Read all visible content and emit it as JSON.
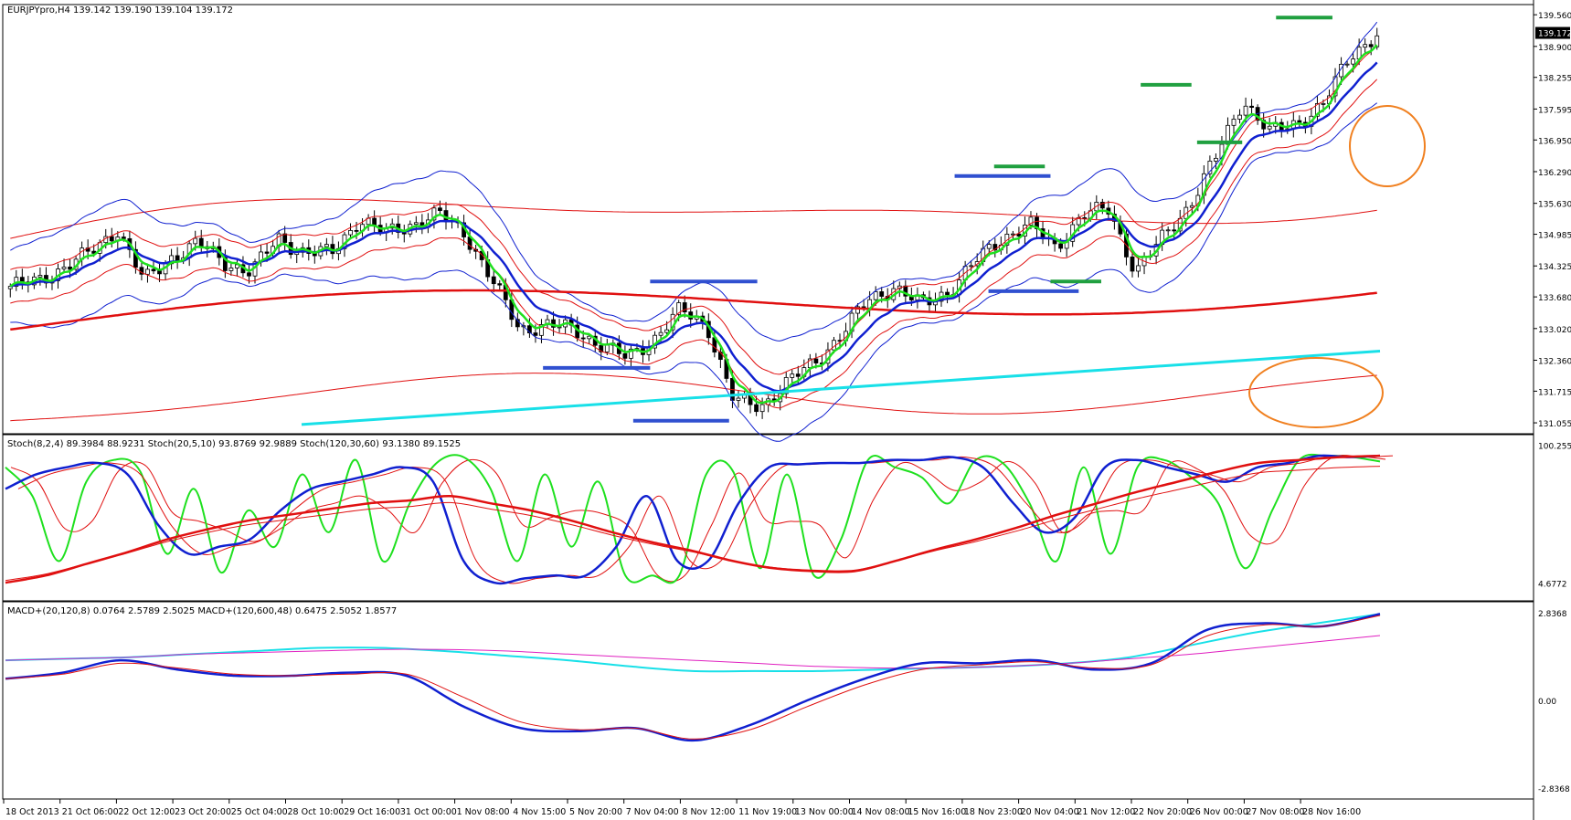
{
  "header": {
    "main": "EURJPYpro,H4  139.142 139.190 139.104 139.172",
    "stoch": "Stoch(8,2,4) 89.3984 88.9231  Stoch(20,5,10) 93.8769 92.9889  Stoch(120,30,60) 93.1380 89.1525",
    "macd": "MACD+(20,120,8) 0.0764 2.5789 2.5025  MACD+(120,600,48) 0.6475 2.5052 1.8577"
  },
  "price_badge": "139.172",
  "colors": {
    "green": "#1ee01e",
    "blue": "#1020d0",
    "red": "#e01010",
    "cyan": "#18e0e8",
    "magenta": "#e020c0",
    "orange": "#f08020",
    "level_blue": "#3050d0",
    "level_green": "#20a040"
  },
  "chart_data": [
    {
      "type": "candlestick",
      "panel": "price",
      "symbol": "EURJPYpro",
      "timeframe": "H4",
      "ohlc_last": {
        "open": 139.142,
        "high": 139.19,
        "low": 139.104,
        "close": 139.172
      },
      "x_labels": [
        "18 Oct 2013",
        "21 Oct 06:00",
        "22 Oct 12:00",
        "23 Oct 20:00",
        "25 Oct 04:00",
        "28 Oct 10:00",
        "29 Oct 16:00",
        "31 Oct 00:00",
        "1 Nov 08:00",
        "4 Nov 15:00",
        "5 Nov 20:00",
        "7 Nov 04:00",
        "8 Nov 12:00",
        "11 Nov 19:00",
        "13 Nov 00:00",
        "14 Nov 08:00",
        "15 Nov 16:00",
        "18 Nov 23:00",
        "20 Nov 04:00",
        "21 Nov 12:00",
        "22 Nov 20:00",
        "26 Nov 00:00",
        "27 Nov 08:00",
        "28 Nov 16:00"
      ],
      "y_ticks": [
        "139.560",
        "138.900",
        "138.255",
        "137.595",
        "136.950",
        "136.290",
        "135.630",
        "134.985",
        "134.325",
        "133.680",
        "133.020",
        "132.360",
        "131.715",
        "131.055"
      ],
      "ylim": [
        130.98,
        139.62
      ],
      "close_path": [
        133.9,
        134.0,
        134.3,
        134.6,
        135.1,
        134.0,
        134.5,
        134.8,
        134.4,
        134.2,
        134.9,
        134.6,
        134.6,
        135.3,
        135.0,
        135.2,
        135.4,
        135.0,
        134.0,
        133.0,
        133.1,
        133.0,
        132.7,
        132.4,
        132.8,
        133.4,
        133.1,
        131.5,
        131.4,
        131.9,
        132.3,
        132.9,
        133.6,
        133.9,
        133.5,
        133.8,
        134.4,
        134.9,
        135.2,
        134.7,
        135.4,
        135.5,
        134.2,
        134.9,
        135.6,
        136.6,
        137.8,
        137.1,
        137.3,
        137.7,
        138.7,
        139.17
      ],
      "support_resistance_levels": [
        {
          "color": "level_blue",
          "from": 9.5,
          "to": 11.4,
          "value": 132.2
        },
        {
          "color": "level_blue",
          "from": 11.4,
          "to": 13.3,
          "value": 134.0
        },
        {
          "color": "level_blue",
          "from": 11.1,
          "to": 12.8,
          "value": 131.1
        },
        {
          "color": "level_blue",
          "from": 16.8,
          "to": 18.5,
          "value": 136.2
        },
        {
          "color": "level_green",
          "from": 17.5,
          "to": 18.4,
          "value": 136.4
        },
        {
          "color": "level_blue",
          "from": 17.4,
          "to": 19.0,
          "value": 133.8
        },
        {
          "color": "level_green",
          "from": 18.5,
          "to": 19.4,
          "value": 134.0
        },
        {
          "color": "level_green",
          "from": 20.1,
          "to": 21.0,
          "value": 138.1
        },
        {
          "color": "level_green",
          "from": 21.1,
          "to": 21.9,
          "value": 136.9
        },
        {
          "color": "level_green",
          "from": 22.5,
          "to": 23.5,
          "value": 139.5
        }
      ],
      "annotations": [
        "orange-circle-upper",
        "orange-ellipse-lower"
      ]
    },
    {
      "type": "line",
      "panel": "stochastic",
      "y_ticks": [
        "100.2558",
        "4.6772"
      ],
      "ylim": [
        0,
        100
      ],
      "series": [
        {
          "color": "green",
          "values": [
            85,
            65,
            20,
            75,
            90,
            82,
            25,
            70,
            12,
            55,
            30,
            80,
            40,
            90,
            20,
            60,
            88,
            92,
            70,
            20,
            80,
            30,
            75,
            10,
            10,
            10,
            80,
            82,
            15,
            80,
            10,
            35,
            90,
            85,
            78,
            60,
            90,
            88,
            60,
            20,
            85,
            25,
            85,
            90,
            78,
            60,
            15,
            55,
            90,
            93,
            92,
            89
          ]
        },
        {
          "color": "blue",
          "values": [
            70,
            80,
            85,
            88,
            80,
            45,
            25,
            30,
            35,
            55,
            70,
            75,
            80,
            85,
            75,
            20,
            5,
            8,
            10,
            10,
            30,
            65,
            20,
            20,
            60,
            85,
            87,
            88,
            88,
            90,
            90,
            92,
            85,
            60,
            40,
            50,
            85,
            90,
            85,
            80,
            75,
            85,
            88,
            93,
            92,
            93
          ]
        },
        {
          "color": "red",
          "values": [
            5,
            10,
            18,
            26,
            35,
            42,
            48,
            52,
            56,
            60,
            62,
            65,
            60,
            55,
            48,
            40,
            33,
            27,
            20,
            15,
            13,
            13,
            20,
            28,
            35,
            43,
            52,
            60,
            68,
            75,
            82,
            88,
            90,
            92,
            93
          ]
        }
      ]
    },
    {
      "type": "line",
      "panel": "macd",
      "y_ticks": [
        "2.8368",
        "0.00",
        "-2.8368"
      ],
      "ylim": [
        -2.84,
        2.84
      ],
      "series": [
        {
          "color": "cyan",
          "values": [
            1.3,
            1.35,
            1.4,
            1.5,
            1.6,
            1.7,
            1.7,
            1.6,
            1.45,
            1.3,
            1.1,
            0.95,
            0.95,
            0.95,
            1.0,
            1.05,
            1.1,
            1.2,
            1.4,
            1.8,
            2.2,
            2.5,
            2.8
          ]
        },
        {
          "color": "magenta",
          "values": [
            1.3,
            1.35,
            1.4,
            1.5,
            1.55,
            1.6,
            1.65,
            1.65,
            1.6,
            1.5,
            1.4,
            1.3,
            1.2,
            1.1,
            1.05,
            1.05,
            1.1,
            1.2,
            1.35,
            1.5,
            1.7,
            1.9,
            2.1
          ]
        },
        {
          "color": "blue",
          "values": [
            0.7,
            0.9,
            1.3,
            1.0,
            0.8,
            0.8,
            0.9,
            0.8,
            -0.2,
            -0.9,
            -1.0,
            -0.9,
            -1.3,
            -0.8,
            0.0,
            0.7,
            1.2,
            1.2,
            1.3,
            1.0,
            1.2,
            2.3,
            2.5,
            2.4,
            2.8
          ]
        },
        {
          "color": "red",
          "values": [
            0.7,
            0.85,
            1.2,
            1.05,
            0.85,
            0.8,
            0.85,
            0.85,
            0.1,
            -0.7,
            -0.95,
            -0.9,
            -1.25,
            -0.95,
            -0.2,
            0.5,
            1.0,
            1.15,
            1.25,
            1.05,
            1.15,
            2.1,
            2.45,
            2.4,
            2.75
          ]
        }
      ]
    }
  ]
}
